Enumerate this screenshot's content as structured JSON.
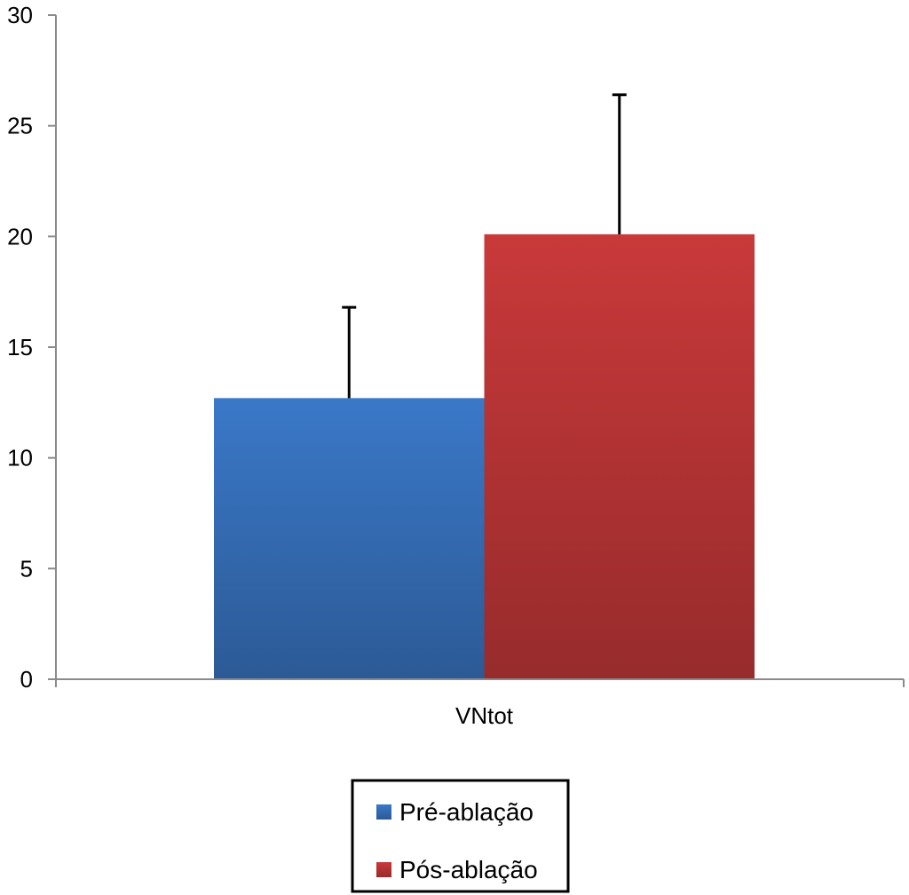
{
  "chart_data": {
    "type": "bar",
    "categories": [
      "VNtot"
    ],
    "series": [
      {
        "name": "Pré-ablação",
        "values": [
          12.7
        ],
        "error": [
          4.1
        ],
        "color": "#3a78c8"
      },
      {
        "name": "Pós-ablação",
        "values": [
          20.1
        ],
        "error": [
          6.3
        ],
        "color": "#c9393a"
      }
    ],
    "ylim": [
      0,
      30
    ],
    "yticks": [
      0,
      5,
      10,
      15,
      20,
      25,
      30
    ],
    "title": "",
    "xlabel": "",
    "ylabel": "",
    "grid": false,
    "legend_position": "bottom-center",
    "legend_box": true
  }
}
